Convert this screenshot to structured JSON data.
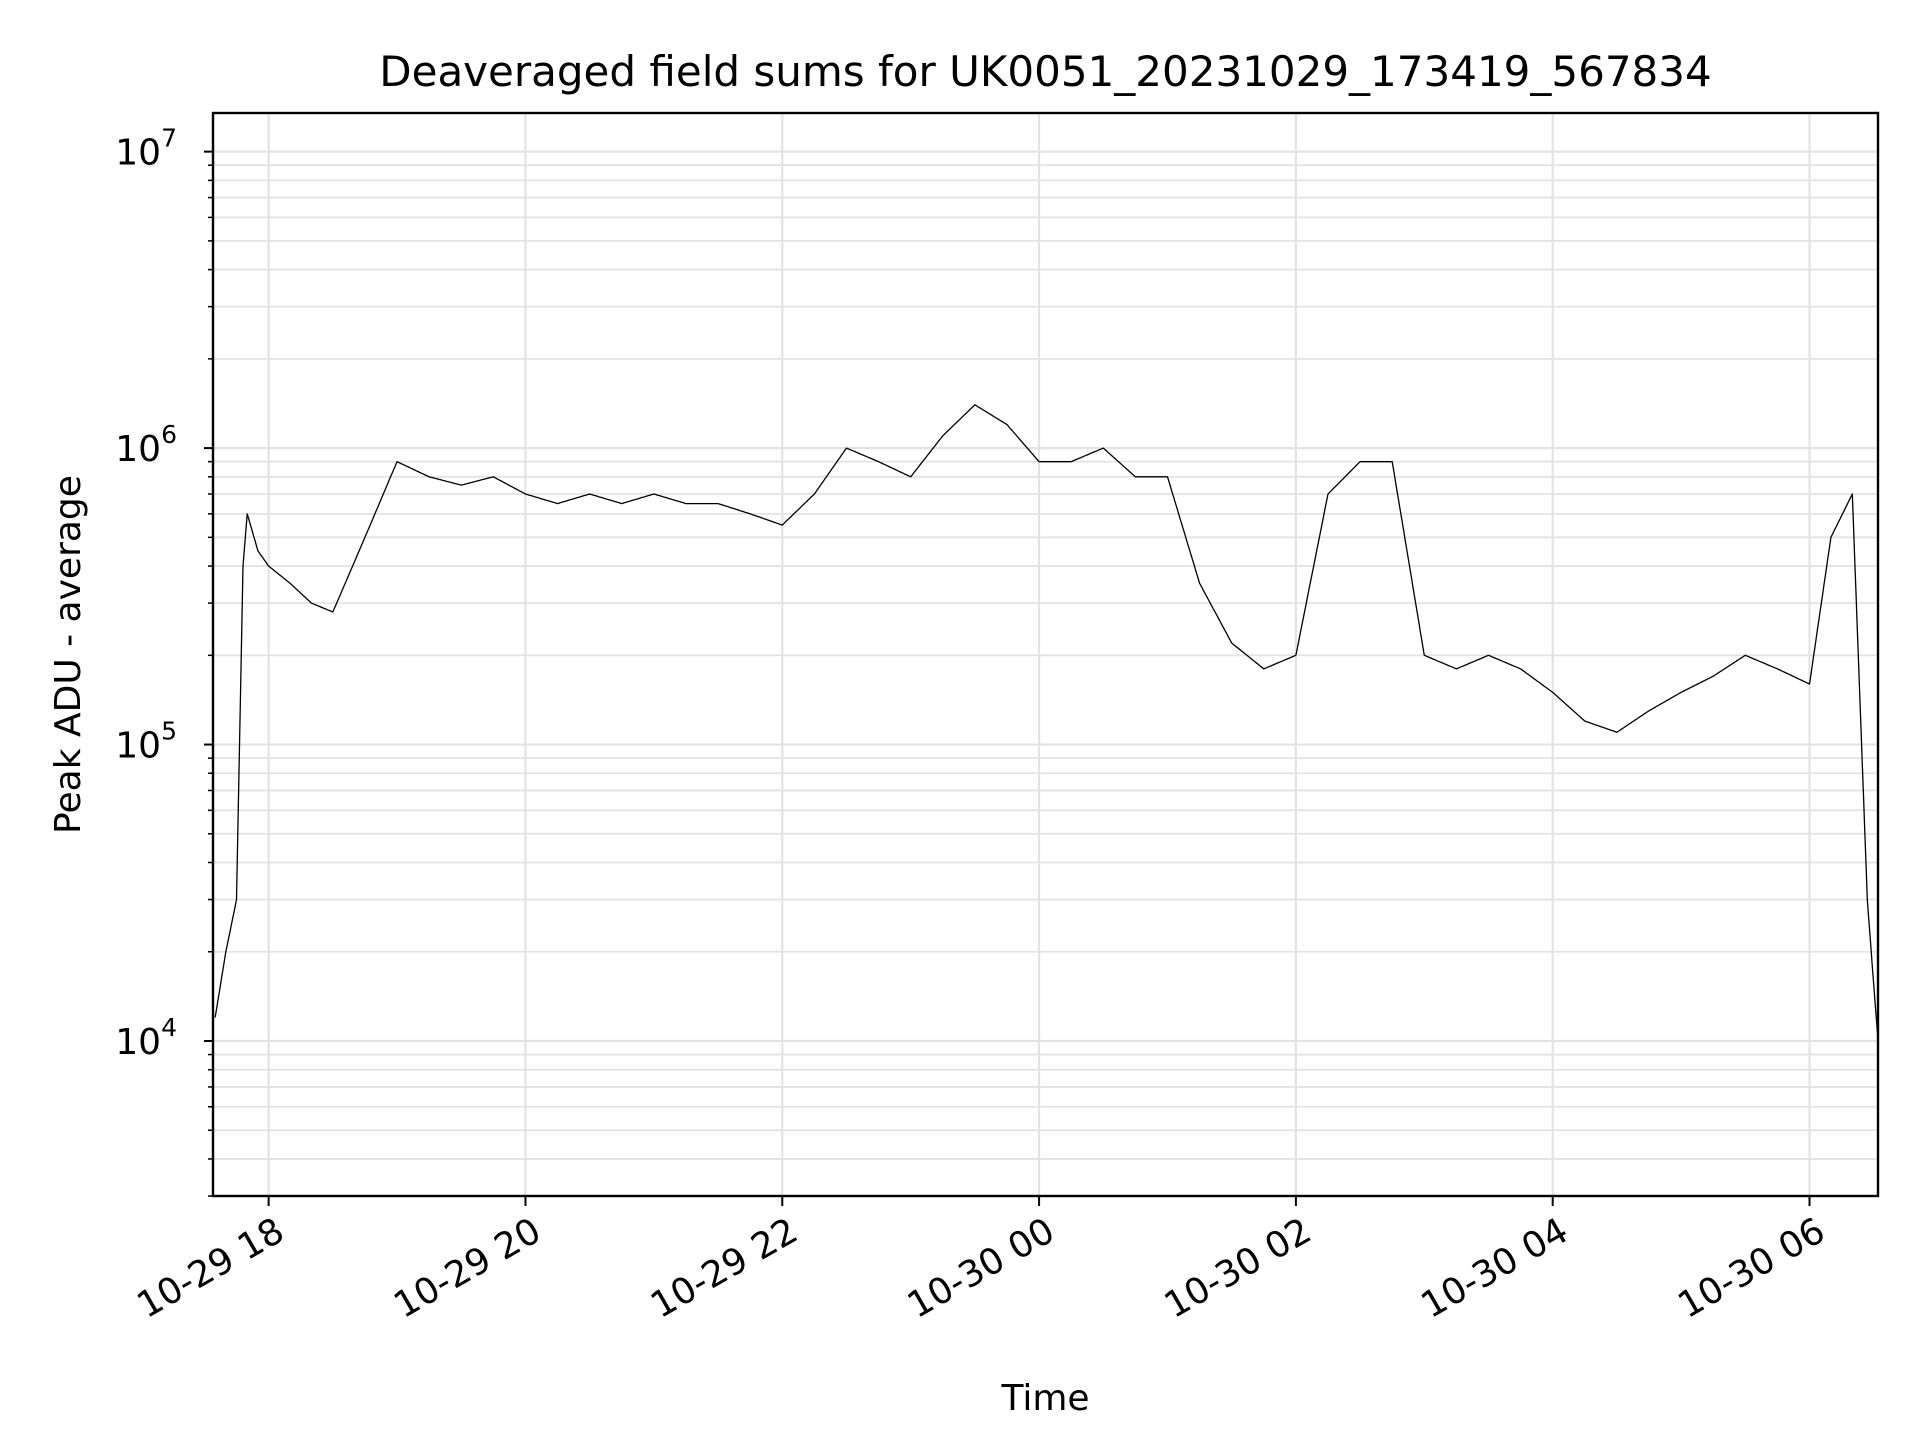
{
  "chart_data": {
    "type": "line",
    "title": "Deaveraged field sums for UK0051_20231029_173419_567834",
    "xlabel": "Time",
    "ylabel": "Peak ADU - average",
    "yscale": "log",
    "ylim": [
      3000,
      13500000
    ],
    "xlim": [
      "2023-10-29 17:34",
      "2023-10-30 06:32"
    ],
    "grid": true,
    "line_color": "#000000",
    "x_ticks": [
      {
        "value": "2023-10-29 18:00",
        "label": "10-29 18"
      },
      {
        "value": "2023-10-29 20:00",
        "label": "10-29 20"
      },
      {
        "value": "2023-10-29 22:00",
        "label": "10-29 22"
      },
      {
        "value": "2023-10-30 00:00",
        "label": "10-30 00"
      },
      {
        "value": "2023-10-30 02:00",
        "label": "10-30 02"
      },
      {
        "value": "2023-10-30 04:00",
        "label": "10-30 04"
      },
      {
        "value": "2023-10-30 06:00",
        "label": "10-30 06"
      }
    ],
    "y_ticks": [
      {
        "value": 10000,
        "base": "10",
        "exp": "4"
      },
      {
        "value": 100000,
        "base": "10",
        "exp": "5"
      },
      {
        "value": 1000000,
        "base": "10",
        "exp": "6"
      },
      {
        "value": 10000000,
        "base": "10",
        "exp": "7"
      }
    ],
    "series": [
      {
        "x": [
          "2023-10-29 17:35",
          "2023-10-29 17:40",
          "2023-10-29 17:45",
          "2023-10-29 17:48",
          "2023-10-29 17:50",
          "2023-10-29 17:55",
          "2023-10-29 18:00",
          "2023-10-29 18:10",
          "2023-10-29 18:20",
          "2023-10-29 18:30",
          "2023-10-29 18:45",
          "2023-10-29 19:00",
          "2023-10-29 19:15",
          "2023-10-29 19:30",
          "2023-10-29 19:45",
          "2023-10-29 20:00",
          "2023-10-29 20:15",
          "2023-10-29 20:30",
          "2023-10-29 20:45",
          "2023-10-29 21:00",
          "2023-10-29 21:15",
          "2023-10-29 21:30",
          "2023-10-29 21:45",
          "2023-10-29 22:00",
          "2023-10-29 22:15",
          "2023-10-29 22:30",
          "2023-10-29 22:45",
          "2023-10-29 23:00",
          "2023-10-29 23:15",
          "2023-10-29 23:30",
          "2023-10-29 23:45",
          "2023-10-30 00:00",
          "2023-10-30 00:15",
          "2023-10-30 00:30",
          "2023-10-30 00:45",
          "2023-10-30 01:00",
          "2023-10-30 01:15",
          "2023-10-30 01:30",
          "2023-10-30 01:45",
          "2023-10-30 02:00",
          "2023-10-30 02:15",
          "2023-10-30 02:30",
          "2023-10-30 02:45",
          "2023-10-30 03:00",
          "2023-10-30 03:15",
          "2023-10-30 03:30",
          "2023-10-30 03:45",
          "2023-10-30 04:00",
          "2023-10-30 04:15",
          "2023-10-30 04:30",
          "2023-10-30 04:45",
          "2023-10-30 05:00",
          "2023-10-30 05:15",
          "2023-10-30 05:30",
          "2023-10-30 05:45",
          "2023-10-30 06:00",
          "2023-10-30 06:10",
          "2023-10-30 06:20",
          "2023-10-30 06:27",
          "2023-10-30 06:32"
        ],
        "values": [
          12000,
          20000,
          30000,
          400000,
          600000,
          450000,
          400000,
          350000,
          300000,
          280000,
          500000,
          900000,
          800000,
          750000,
          800000,
          700000,
          650000,
          700000,
          650000,
          700000,
          650000,
          650000,
          600000,
          550000,
          700000,
          1000000,
          900000,
          800000,
          1100000,
          1400000,
          1200000,
          900000,
          900000,
          1000000,
          800000,
          800000,
          350000,
          220000,
          180000,
          200000,
          700000,
          900000,
          900000,
          200000,
          180000,
          200000,
          180000,
          150000,
          120000,
          110000,
          130000,
          150000,
          170000,
          200000,
          180000,
          160000,
          500000,
          700000,
          30000,
          10000
        ]
      }
    ]
  }
}
